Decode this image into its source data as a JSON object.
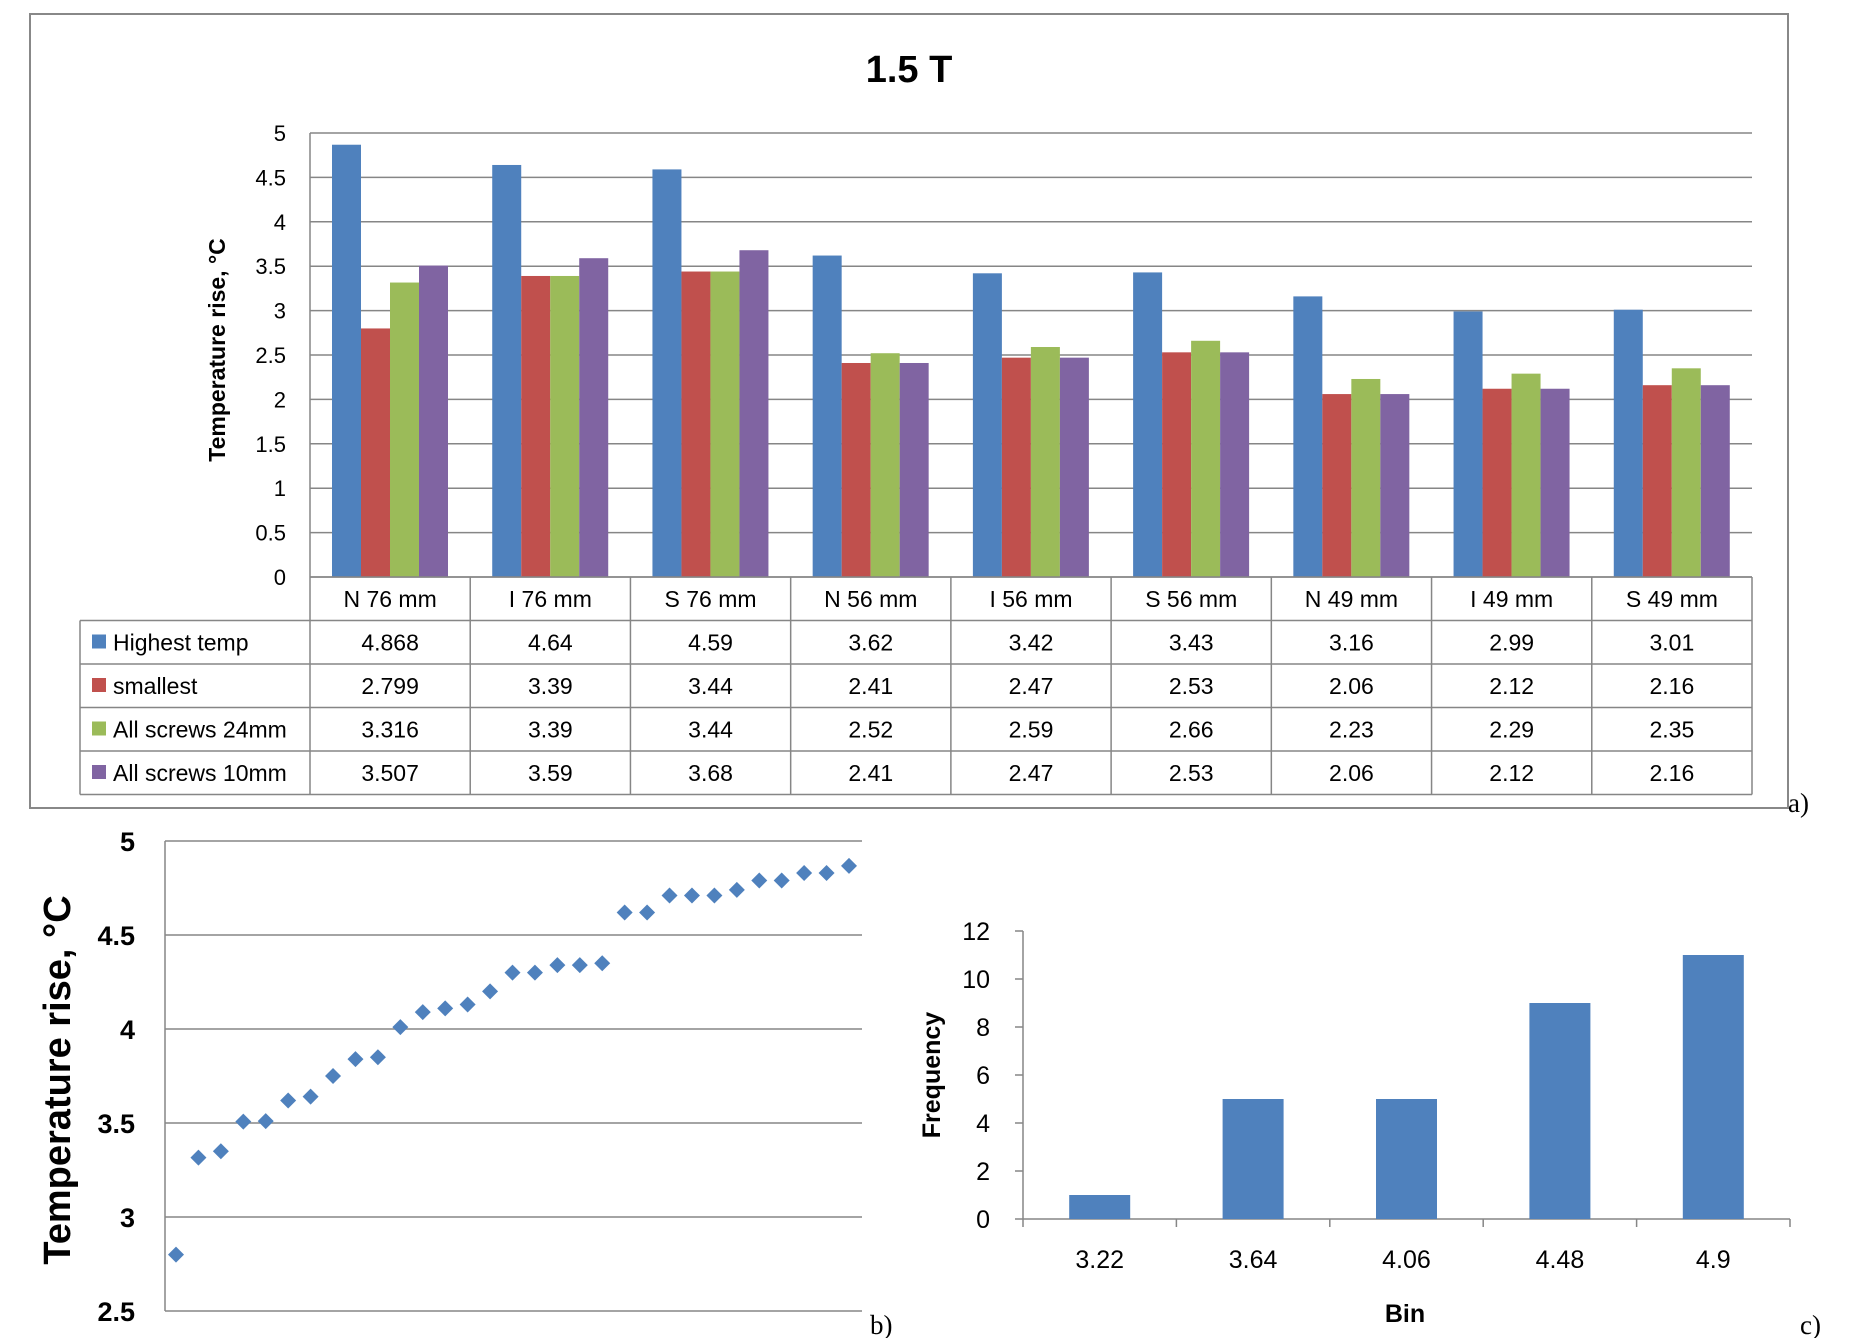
{
  "chart_data": [
    {
      "type": "bar",
      "panel_label": "a)",
      "title": "1.5 T",
      "ylabel": "Temperature rise, °C",
      "xlabel": "",
      "ylim": [
        0,
        5
      ],
      "yticks": [
        "0",
        "0.5",
        "1",
        "1.5",
        "2",
        "2.5",
        "3",
        "3.5",
        "4",
        "4.5",
        "5"
      ],
      "grid": true,
      "legend": "data table",
      "categories": [
        "N 76 mm",
        "I 76 mm",
        "S 76 mm",
        "N 56 mm",
        "I 56 mm",
        "S 56 mm",
        "N 49 mm",
        "I 49 mm",
        "S 49 mm"
      ],
      "series": [
        {
          "name": "Highest temp",
          "color": "#4F81BD",
          "values": [
            4.868,
            4.64,
            4.59,
            3.62,
            3.42,
            3.43,
            3.16,
            2.99,
            3.01
          ],
          "labels": [
            "4.868",
            "4.64",
            "4.59",
            "3.62",
            "3.42",
            "3.43",
            "3.16",
            "2.99",
            "3.01"
          ]
        },
        {
          "name": "smallest",
          "color": "#C0504D",
          "values": [
            2.799,
            3.39,
            3.44,
            2.41,
            2.47,
            2.53,
            2.06,
            2.12,
            2.16
          ],
          "labels": [
            "2.799",
            "3.39",
            "3.44",
            "2.41",
            "2.47",
            "2.53",
            "2.06",
            "2.12",
            "2.16"
          ]
        },
        {
          "name": "All screws 24mm",
          "color": "#9BBB59",
          "values": [
            3.316,
            3.39,
            3.44,
            2.52,
            2.59,
            2.66,
            2.23,
            2.29,
            2.35
          ],
          "labels": [
            "3.316",
            "3.39",
            "3.44",
            "2.52",
            "2.59",
            "2.66",
            "2.23",
            "2.29",
            "2.35"
          ]
        },
        {
          "name": "All screws 10mm",
          "color": "#8064A2",
          "values": [
            3.507,
            3.59,
            3.68,
            2.41,
            2.47,
            2.53,
            2.06,
            2.12,
            2.16
          ],
          "labels": [
            "3.507",
            "3.59",
            "3.68",
            "2.41",
            "2.47",
            "2.53",
            "2.06",
            "2.12",
            "2.16"
          ]
        }
      ]
    },
    {
      "type": "scatter",
      "panel_label": "b)",
      "title": "",
      "ylabel": "Temperature rise, °C",
      "xlabel": "",
      "ylim": [
        2.5,
        5
      ],
      "yticks": [
        "2.5",
        "3",
        "3.5",
        "4",
        "4.5",
        "5"
      ],
      "grid": true,
      "marker_color": "#4F81BD",
      "y": [
        2.8,
        3.316,
        3.35,
        3.507,
        3.51,
        3.62,
        3.64,
        3.75,
        3.84,
        3.85,
        4.01,
        4.09,
        4.11,
        4.13,
        4.2,
        4.3,
        4.3,
        4.34,
        4.34,
        4.35,
        4.62,
        4.62,
        4.71,
        4.71,
        4.71,
        4.74,
        4.79,
        4.79,
        4.83,
        4.83,
        4.868
      ]
    },
    {
      "type": "bar",
      "panel_label": "c)",
      "title": "",
      "xlabel": "Bin",
      "ylabel": "Frequency",
      "ylim": [
        0,
        12
      ],
      "yticks": [
        "0",
        "2",
        "4",
        "6",
        "8",
        "10",
        "12"
      ],
      "grid": false,
      "color": "#4F81BD",
      "categories": [
        "3.22",
        "3.64",
        "4.06",
        "4.48",
        "4.9"
      ],
      "values": [
        1,
        5,
        5,
        9,
        11
      ]
    }
  ]
}
